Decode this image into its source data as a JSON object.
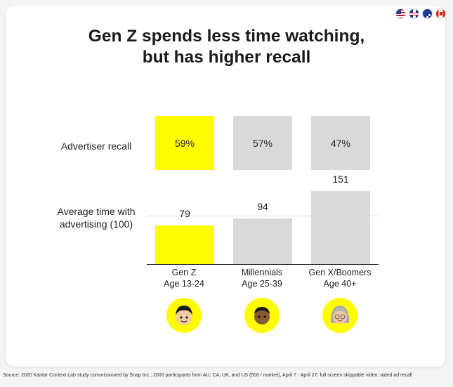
{
  "title_line1": "Gen Z spends less time watching,",
  "title_line2": "but has higher recall",
  "flags": [
    "us-flag-icon",
    "uk-flag-icon",
    "australia-flag-icon",
    "canada-flag-icon"
  ],
  "row_labels": {
    "recall": "Advertiser recall",
    "time_line1": "Average time with",
    "time_line2": "advertising (100)"
  },
  "colors": {
    "highlight": "#fffc00",
    "neutral": "#d9d9d9"
  },
  "chart_data": {
    "type": "bar",
    "title": "Gen Z spends less time watching, but has higher recall",
    "categories": [
      "Gen Z Age 13-24",
      "Millennials Age 25-39",
      "Gen X/Boomers Age 40+"
    ],
    "generations": [
      {
        "name": "Gen Z",
        "age": "Age 13-24",
        "recall": "59%",
        "time": 79,
        "avatar": "genz-avatar-icon"
      },
      {
        "name": "Millennials",
        "age": "Age 25-39",
        "recall": "57%",
        "time": 94,
        "avatar": "millennial-avatar-icon"
      },
      {
        "name": "Gen X/Boomers",
        "age": "Age 40+",
        "recall": "47%",
        "time": 151,
        "avatar": "boomer-avatar-icon"
      }
    ],
    "series": [
      {
        "name": "Advertiser recall",
        "values": [
          59,
          57,
          47
        ]
      },
      {
        "name": "Average time with advertising (100)",
        "values": [
          79,
          94,
          151
        ]
      }
    ],
    "baseline": 100
  },
  "source": "Source: 2020 Kantar Context Lab study commissioned by Snap Inc.; 2000 participants from AU, CA, UK, and US (500 / market), April 7 - April 27; full screen skippable video; aided ad recall"
}
